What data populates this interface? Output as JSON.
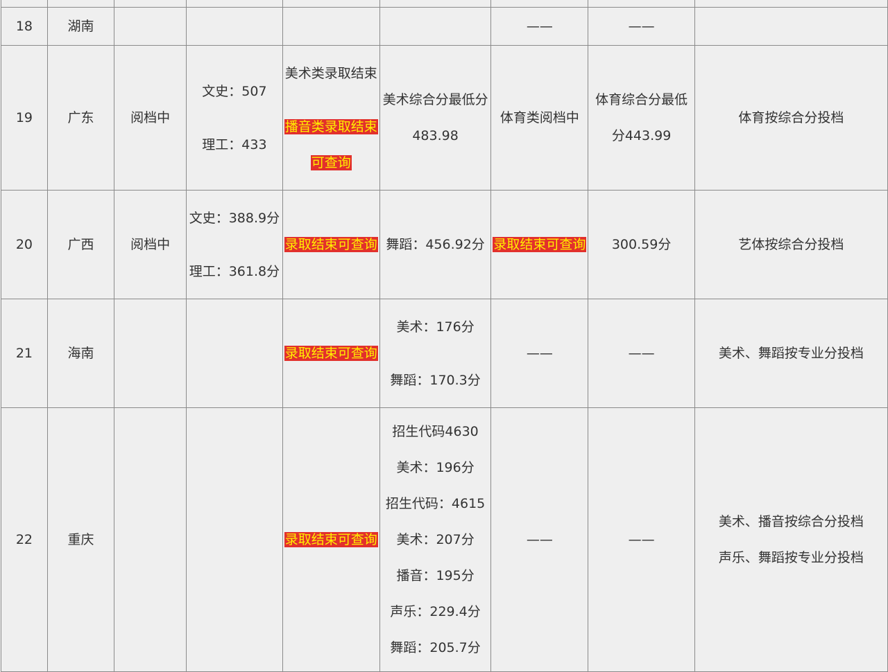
{
  "colors": {
    "highlight_bg": "#e2302c",
    "highlight_text": "#ffee00",
    "cell_bg": "#efefef",
    "border": "#8a8a8a"
  },
  "rows": [
    {
      "cells": [
        {
          "lines": []
        },
        {
          "lines": []
        },
        {
          "lines": []
        },
        {
          "lines": []
        },
        {
          "lines": []
        },
        {
          "lines": []
        },
        {
          "lines": []
        },
        {
          "lines": []
        },
        {
          "lines": []
        }
      ]
    },
    {
      "cells": [
        {
          "lines": [
            {
              "text": "18"
            }
          ]
        },
        {
          "lines": [
            {
              "text": "湖南"
            }
          ]
        },
        {
          "lines": []
        },
        {
          "lines": []
        },
        {
          "lines": []
        },
        {
          "lines": []
        },
        {
          "lines": [
            {
              "text": "——"
            }
          ]
        },
        {
          "lines": [
            {
              "text": "——"
            }
          ]
        },
        {
          "lines": []
        }
      ]
    },
    {
      "cells": [
        {
          "lines": [
            {
              "text": "19"
            }
          ]
        },
        {
          "lines": [
            {
              "text": "广东"
            }
          ]
        },
        {
          "lines": [
            {
              "text": "阅档中"
            }
          ]
        },
        {
          "lines": [
            {
              "text": "文史：507"
            },
            {
              "text": "理工：433"
            }
          ]
        },
        {
          "lines": [
            {
              "text": "美术类录取结束"
            },
            {
              "text": "播音类录取结束",
              "highlight": true
            },
            {
              "text": "可查询",
              "highlight": true
            }
          ]
        },
        {
          "lines": [
            {
              "text": "美术综合分最低分"
            },
            {
              "text": "483.98"
            }
          ]
        },
        {
          "lines": [
            {
              "text": "体育类阅档中"
            }
          ]
        },
        {
          "lines": [
            {
              "text": "体育综合分最低"
            },
            {
              "text": "分443.99"
            }
          ]
        },
        {
          "lines": [
            {
              "text": "体育按综合分投档"
            }
          ]
        }
      ]
    },
    {
      "cells": [
        {
          "lines": [
            {
              "text": "20"
            }
          ]
        },
        {
          "lines": [
            {
              "text": "广西"
            }
          ]
        },
        {
          "lines": [
            {
              "text": "阅档中"
            }
          ]
        },
        {
          "lines": [
            {
              "text": "文史：388.9分"
            },
            {
              "text": "理工：361.8分"
            }
          ]
        },
        {
          "lines": [
            {
              "text": "录取结束可查询",
              "highlight": true
            }
          ]
        },
        {
          "lines": [
            {
              "text": "舞蹈：456.92分"
            }
          ]
        },
        {
          "lines": [
            {
              "text": "录取结束可查询",
              "highlight": true
            }
          ]
        },
        {
          "lines": [
            {
              "text": "300.59分"
            }
          ]
        },
        {
          "lines": [
            {
              "text": "艺体按综合分投档"
            }
          ]
        }
      ]
    },
    {
      "cells": [
        {
          "lines": [
            {
              "text": "21"
            }
          ]
        },
        {
          "lines": [
            {
              "text": "海南"
            }
          ]
        },
        {
          "lines": []
        },
        {
          "lines": []
        },
        {
          "lines": [
            {
              "text": "录取结束可查询",
              "highlight": true
            }
          ]
        },
        {
          "lines": [
            {
              "text": "美术：176分"
            },
            {
              "text": "舞蹈：170.3分"
            }
          ]
        },
        {
          "lines": [
            {
              "text": "——"
            }
          ]
        },
        {
          "lines": [
            {
              "text": "——"
            }
          ]
        },
        {
          "lines": [
            {
              "text": "美术、舞蹈按专业分投档"
            }
          ]
        }
      ]
    },
    {
      "cells": [
        {
          "lines": [
            {
              "text": "22"
            }
          ]
        },
        {
          "lines": [
            {
              "text": "重庆"
            }
          ]
        },
        {
          "lines": []
        },
        {
          "lines": []
        },
        {
          "lines": [
            {
              "text": "录取结束可查询",
              "highlight": true
            }
          ]
        },
        {
          "lines": [
            {
              "text": "招生代码4630"
            },
            {
              "text": "美术：196分"
            },
            {
              "text": "招生代码：4615"
            },
            {
              "text": "美术：207分"
            },
            {
              "text": "播音：195分"
            },
            {
              "text": "声乐：229.4分"
            },
            {
              "text": "舞蹈：205.7分"
            }
          ]
        },
        {
          "lines": [
            {
              "text": "——"
            }
          ]
        },
        {
          "lines": [
            {
              "text": "——"
            }
          ]
        },
        {
          "lines": [
            {
              "text": "美术、播音按综合分投档"
            },
            {
              "text": "声乐、舞蹈按专业分投档"
            }
          ]
        }
      ]
    }
  ]
}
